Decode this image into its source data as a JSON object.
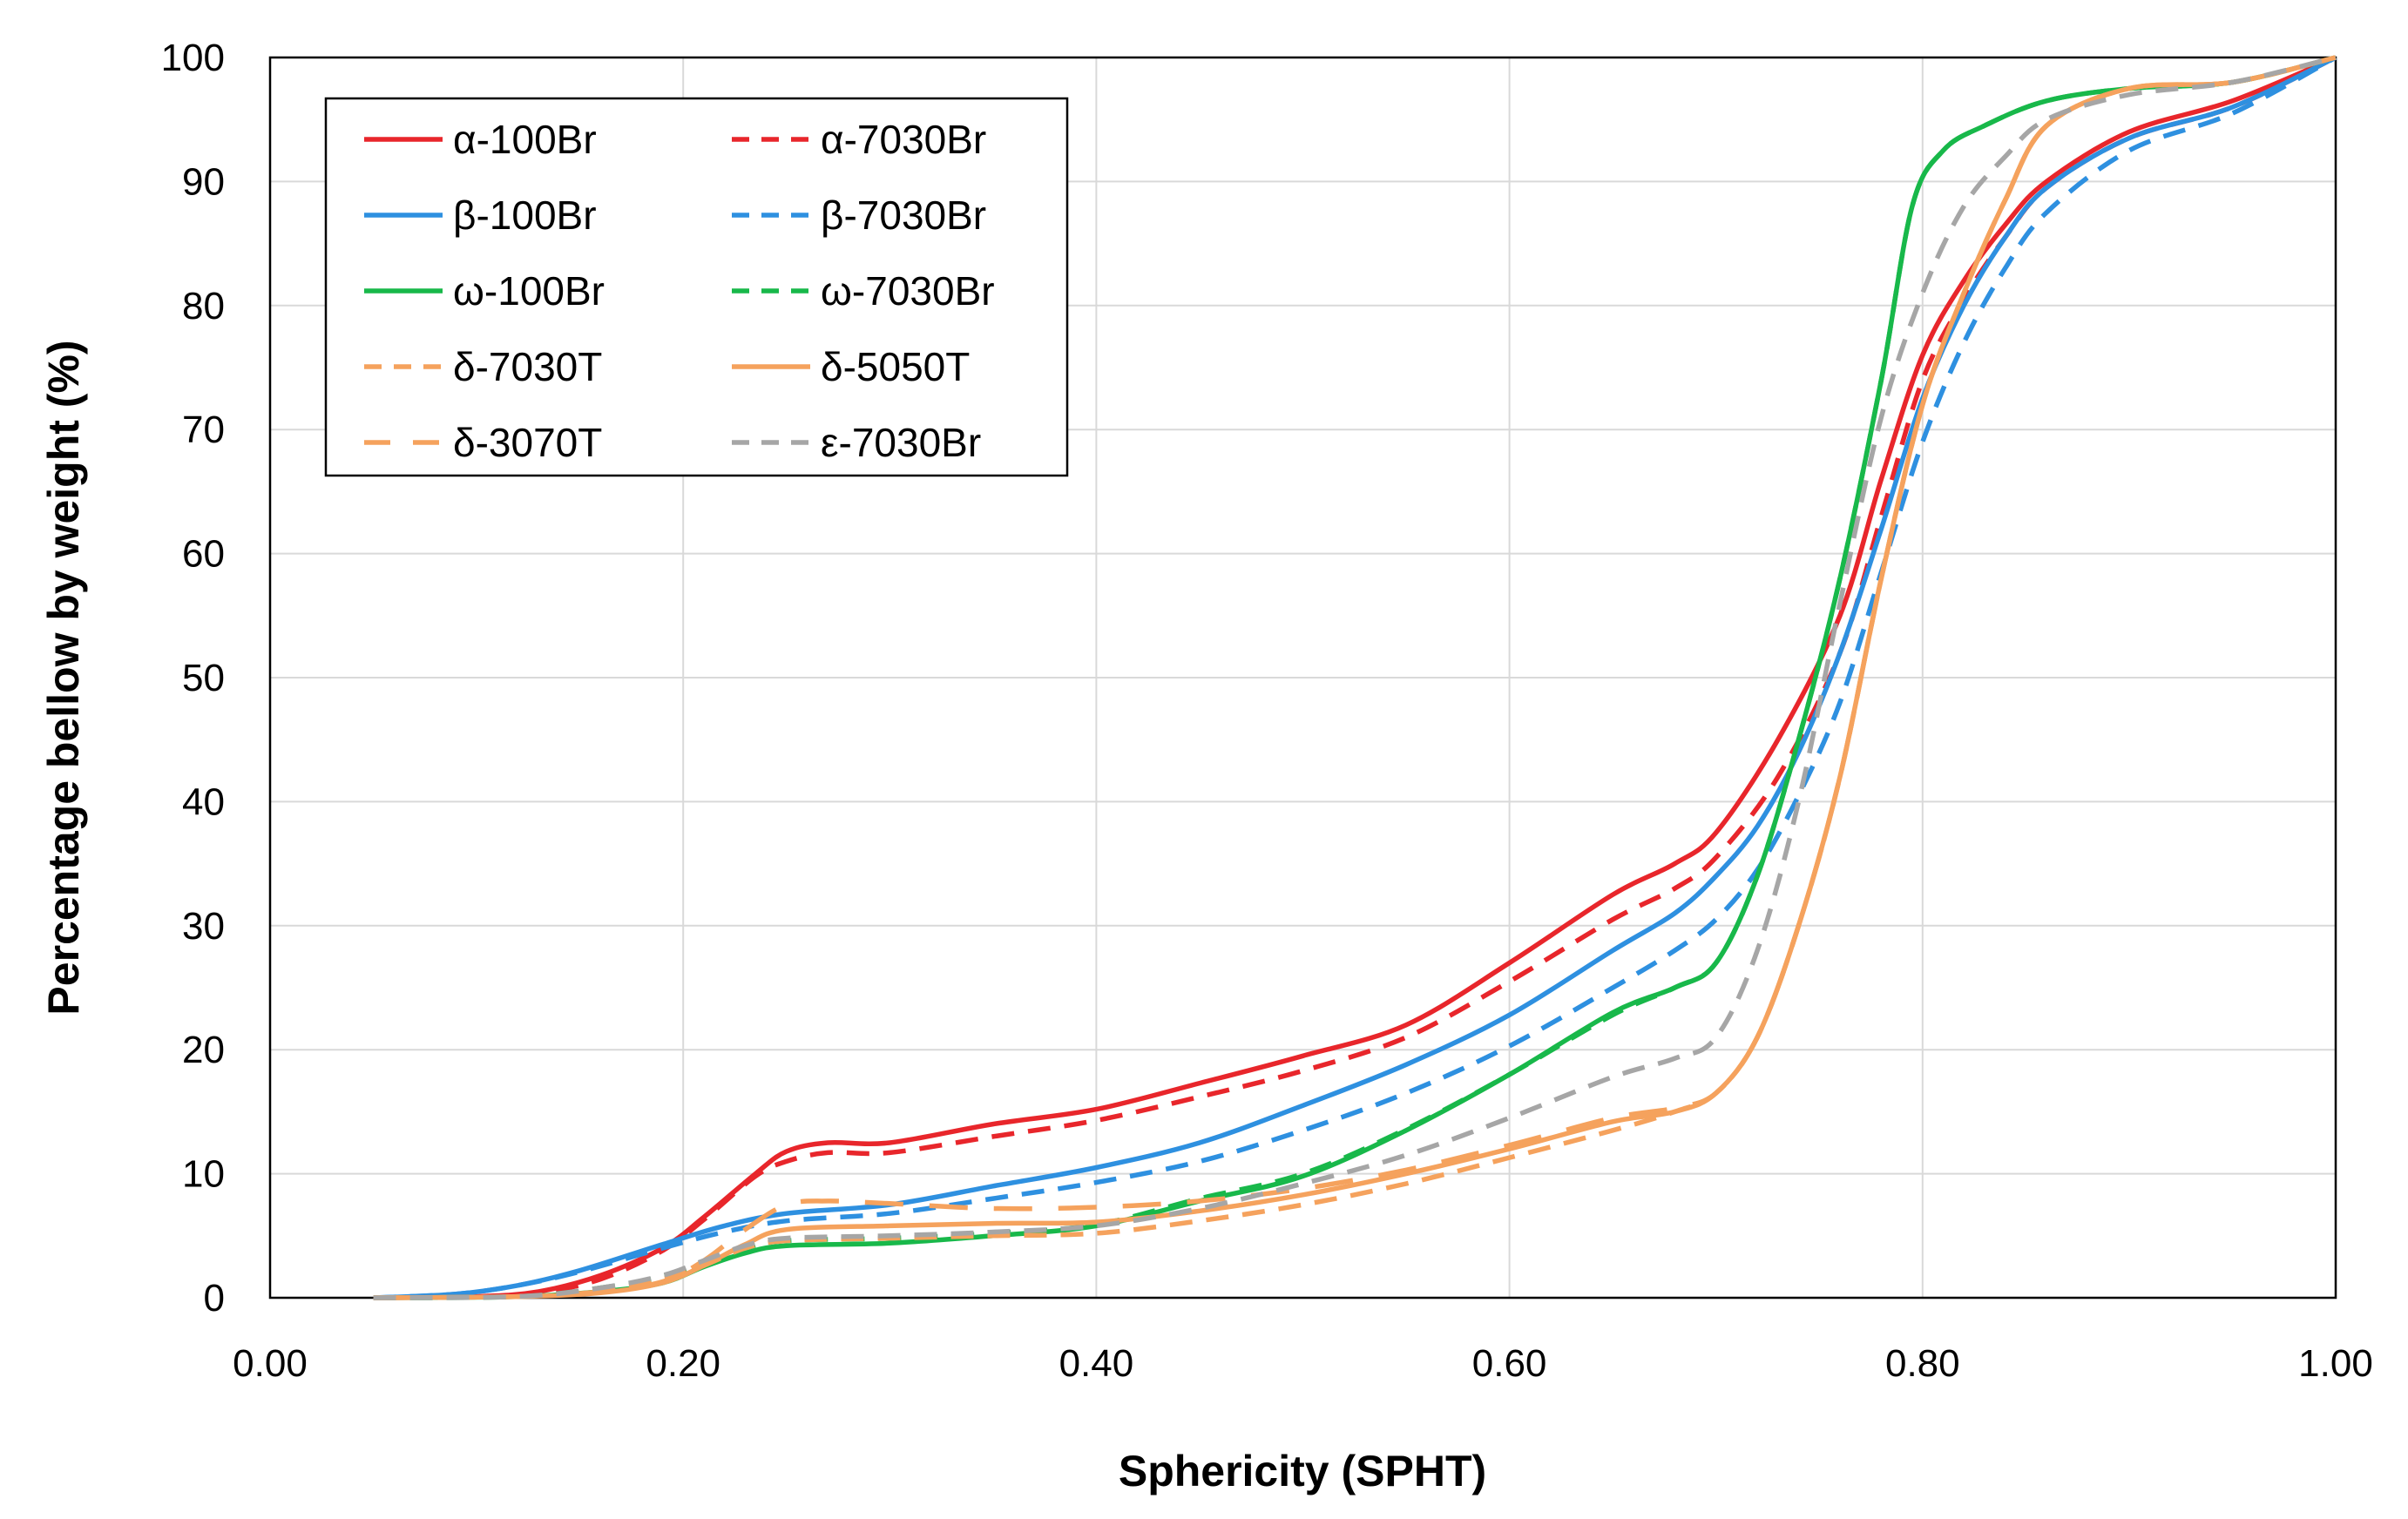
{
  "chart_data": {
    "type": "line",
    "title": "",
    "xlabel": "Sphericity (SPHT)",
    "ylabel": "Percentage bellow by weight (%)",
    "xlim": [
      0,
      1
    ],
    "ylim": [
      0,
      100
    ],
    "xticks": [
      0,
      0.2,
      0.4,
      0.6,
      0.8,
      1.0
    ],
    "xtick_labels": [
      "0.00",
      "0.20",
      "0.40",
      "0.60",
      "0.80",
      "1.00"
    ],
    "yticks": [
      0,
      10,
      20,
      30,
      40,
      50,
      60,
      70,
      80,
      90,
      100
    ],
    "ytick_labels": [
      "0",
      "10",
      "20",
      "30",
      "40",
      "50",
      "60",
      "70",
      "80",
      "90",
      "100"
    ],
    "grid": true,
    "legend_position": "top-left",
    "series": [
      {
        "name": "α-100Br",
        "color": "#e8262b",
        "dash": "solid",
        "points": [
          [
            0.05,
            0
          ],
          [
            0.1,
            0.1
          ],
          [
            0.13,
            0.5
          ],
          [
            0.16,
            1.8
          ],
          [
            0.19,
            4
          ],
          [
            0.21,
            6.5
          ],
          [
            0.235,
            10
          ],
          [
            0.25,
            11.8
          ],
          [
            0.27,
            12.5
          ],
          [
            0.3,
            12.5
          ],
          [
            0.35,
            14
          ],
          [
            0.4,
            15.2
          ],
          [
            0.45,
            17.3
          ],
          [
            0.5,
            19.5
          ],
          [
            0.55,
            22
          ],
          [
            0.6,
            27
          ],
          [
            0.65,
            32.5
          ],
          [
            0.68,
            35
          ],
          [
            0.7,
            37.5
          ],
          [
            0.73,
            45
          ],
          [
            0.76,
            55
          ],
          [
            0.78,
            66
          ],
          [
            0.8,
            76
          ],
          [
            0.82,
            82
          ],
          [
            0.84,
            86.5
          ],
          [
            0.86,
            90
          ],
          [
            0.9,
            94
          ],
          [
            0.95,
            96.5
          ],
          [
            1.0,
            100
          ]
        ]
      },
      {
        "name": "α-7030Br",
        "color": "#e8262b",
        "dash": "dashed",
        "points": [
          [
            0.05,
            0
          ],
          [
            0.1,
            0.1
          ],
          [
            0.13,
            0.4
          ],
          [
            0.16,
            1.5
          ],
          [
            0.19,
            3.8
          ],
          [
            0.21,
            6.3
          ],
          [
            0.235,
            9.8
          ],
          [
            0.25,
            11
          ],
          [
            0.27,
            11.7
          ],
          [
            0.3,
            11.7
          ],
          [
            0.35,
            13
          ],
          [
            0.4,
            14.3
          ],
          [
            0.45,
            16.2
          ],
          [
            0.5,
            18.3
          ],
          [
            0.55,
            21
          ],
          [
            0.6,
            25.5
          ],
          [
            0.65,
            30.5
          ],
          [
            0.68,
            33
          ],
          [
            0.7,
            35.5
          ],
          [
            0.73,
            42
          ],
          [
            0.76,
            52
          ],
          [
            0.78,
            63
          ],
          [
            0.8,
            74
          ],
          [
            0.82,
            80.5
          ],
          [
            0.84,
            85.5
          ],
          [
            0.86,
            89.5
          ],
          [
            0.9,
            93.5
          ],
          [
            0.95,
            96
          ],
          [
            1.0,
            100
          ]
        ]
      },
      {
        "name": "β-100Br",
        "color": "#2e90e0",
        "dash": "solid",
        "points": [
          [
            0.05,
            0
          ],
          [
            0.09,
            0.3
          ],
          [
            0.12,
            1
          ],
          [
            0.15,
            2.2
          ],
          [
            0.19,
            4.3
          ],
          [
            0.22,
            5.8
          ],
          [
            0.25,
            6.8
          ],
          [
            0.3,
            7.5
          ],
          [
            0.35,
            9
          ],
          [
            0.4,
            10.5
          ],
          [
            0.45,
            12.5
          ],
          [
            0.5,
            15.5
          ],
          [
            0.55,
            18.8
          ],
          [
            0.6,
            22.8
          ],
          [
            0.65,
            28
          ],
          [
            0.68,
            31
          ],
          [
            0.7,
            34
          ],
          [
            0.72,
            38
          ],
          [
            0.74,
            44
          ],
          [
            0.76,
            52
          ],
          [
            0.78,
            62
          ],
          [
            0.8,
            72.5
          ],
          [
            0.82,
            80
          ],
          [
            0.84,
            85.5
          ],
          [
            0.86,
            89.5
          ],
          [
            0.9,
            93.5
          ],
          [
            0.95,
            96
          ],
          [
            1.0,
            100
          ]
        ]
      },
      {
        "name": "β-7030Br",
        "color": "#2e90e0",
        "dash": "dashed",
        "points": [
          [
            0.05,
            0
          ],
          [
            0.09,
            0.3
          ],
          [
            0.12,
            1
          ],
          [
            0.15,
            2.1
          ],
          [
            0.19,
            4
          ],
          [
            0.22,
            5.3
          ],
          [
            0.25,
            6.2
          ],
          [
            0.3,
            6.8
          ],
          [
            0.35,
            8
          ],
          [
            0.4,
            9.3
          ],
          [
            0.45,
            11
          ],
          [
            0.5,
            13.5
          ],
          [
            0.55,
            16.5
          ],
          [
            0.6,
            20.3
          ],
          [
            0.65,
            25
          ],
          [
            0.68,
            28
          ],
          [
            0.7,
            30.5
          ],
          [
            0.72,
            34.5
          ],
          [
            0.74,
            40.5
          ],
          [
            0.76,
            48
          ],
          [
            0.78,
            58.5
          ],
          [
            0.8,
            69
          ],
          [
            0.82,
            77
          ],
          [
            0.84,
            83
          ],
          [
            0.86,
            87.5
          ],
          [
            0.9,
            92.5
          ],
          [
            0.95,
            95.5
          ],
          [
            1.0,
            100
          ]
        ]
      },
      {
        "name": "ω-100Br",
        "color": "#18b84a",
        "dash": "solid",
        "points": [
          [
            0.05,
            0
          ],
          [
            0.12,
            0.1
          ],
          [
            0.16,
            0.5
          ],
          [
            0.19,
            1.2
          ],
          [
            0.21,
            2.5
          ],
          [
            0.23,
            3.6
          ],
          [
            0.25,
            4.2
          ],
          [
            0.3,
            4.4
          ],
          [
            0.35,
            5
          ],
          [
            0.4,
            5.8
          ],
          [
            0.45,
            7.8
          ],
          [
            0.5,
            9.8
          ],
          [
            0.55,
            13.5
          ],
          [
            0.6,
            18
          ],
          [
            0.65,
            23
          ],
          [
            0.68,
            25
          ],
          [
            0.7,
            27
          ],
          [
            0.72,
            34
          ],
          [
            0.74,
            45
          ],
          [
            0.76,
            58
          ],
          [
            0.78,
            74
          ],
          [
            0.795,
            88
          ],
          [
            0.81,
            92.5
          ],
          [
            0.83,
            94.5
          ],
          [
            0.86,
            96.5
          ],
          [
            0.9,
            97.5
          ],
          [
            0.95,
            98
          ],
          [
            1.0,
            100
          ]
        ]
      },
      {
        "name": "ω-7030Br",
        "color": "#18b84a",
        "dash": "dashed",
        "points": [
          [
            0.05,
            0
          ],
          [
            0.12,
            0.1
          ],
          [
            0.16,
            0.8
          ],
          [
            0.19,
            1.7
          ],
          [
            0.21,
            2.8
          ],
          [
            0.23,
            4
          ],
          [
            0.25,
            4.6
          ],
          [
            0.3,
            4.8
          ],
          [
            0.35,
            5.2
          ],
          [
            0.4,
            5.9
          ],
          [
            0.45,
            8
          ],
          [
            0.5,
            10
          ],
          [
            0.55,
            13.6
          ],
          [
            0.6,
            18
          ],
          [
            0.65,
            22.8
          ],
          [
            0.68,
            25
          ],
          [
            0.7,
            27
          ],
          [
            0.72,
            34
          ],
          [
            0.74,
            45
          ],
          [
            0.76,
            58
          ],
          [
            0.78,
            74
          ],
          [
            0.795,
            88
          ],
          [
            0.81,
            92.5
          ],
          [
            0.83,
            94.5
          ],
          [
            0.86,
            96.5
          ],
          [
            0.9,
            97.5
          ],
          [
            0.95,
            98
          ],
          [
            1.0,
            100
          ]
        ]
      },
      {
        "name": "δ-7030T",
        "color": "#f5a25d",
        "dash": "dashed",
        "points": [
          [
            0.05,
            0
          ],
          [
            0.12,
            0.1
          ],
          [
            0.16,
            0.6
          ],
          [
            0.19,
            1.5
          ],
          [
            0.21,
            2.6
          ],
          [
            0.23,
            4
          ],
          [
            0.25,
            4.6
          ],
          [
            0.3,
            4.8
          ],
          [
            0.35,
            5
          ],
          [
            0.4,
            5.2
          ],
          [
            0.45,
            6.2
          ],
          [
            0.5,
            7.5
          ],
          [
            0.55,
            9.2
          ],
          [
            0.6,
            11.3
          ],
          [
            0.65,
            13.5
          ],
          [
            0.68,
            15
          ],
          [
            0.7,
            16.5
          ],
          [
            0.72,
            21
          ],
          [
            0.74,
            30
          ],
          [
            0.76,
            42
          ],
          [
            0.78,
            58
          ],
          [
            0.8,
            72
          ],
          [
            0.82,
            81
          ],
          [
            0.84,
            88.5
          ],
          [
            0.86,
            94.5
          ],
          [
            0.9,
            97.5
          ],
          [
            0.95,
            98
          ],
          [
            1.0,
            100
          ]
        ]
      },
      {
        "name": "δ-5050T",
        "color": "#f5a25d",
        "dash": "solid",
        "points": [
          [
            0.05,
            0
          ],
          [
            0.12,
            0.1
          ],
          [
            0.16,
            0.4
          ],
          [
            0.19,
            1.2
          ],
          [
            0.21,
            2.6
          ],
          [
            0.23,
            4.3
          ],
          [
            0.25,
            5.5
          ],
          [
            0.3,
            5.8
          ],
          [
            0.35,
            6
          ],
          [
            0.4,
            6.1
          ],
          [
            0.45,
            7
          ],
          [
            0.5,
            8.3
          ],
          [
            0.55,
            10
          ],
          [
            0.6,
            12
          ],
          [
            0.65,
            14.2
          ],
          [
            0.68,
            15
          ],
          [
            0.7,
            16.5
          ],
          [
            0.72,
            21
          ],
          [
            0.74,
            30
          ],
          [
            0.76,
            42
          ],
          [
            0.78,
            58
          ],
          [
            0.8,
            72
          ],
          [
            0.82,
            81
          ],
          [
            0.84,
            88.5
          ],
          [
            0.86,
            94.5
          ],
          [
            0.9,
            97.5
          ],
          [
            0.95,
            98
          ],
          [
            1.0,
            100
          ]
        ]
      },
      {
        "name": "δ-3070T",
        "color": "#f5a25d",
        "dash": "longdash",
        "points": [
          [
            0.05,
            0
          ],
          [
            0.12,
            0.1
          ],
          [
            0.16,
            0.5
          ],
          [
            0.19,
            1.3
          ],
          [
            0.21,
            3
          ],
          [
            0.23,
            5.5
          ],
          [
            0.25,
            7.5
          ],
          [
            0.27,
            7.8
          ],
          [
            0.3,
            7.6
          ],
          [
            0.35,
            7.2
          ],
          [
            0.4,
            7.3
          ],
          [
            0.45,
            7.8
          ],
          [
            0.5,
            8.8
          ],
          [
            0.55,
            10.3
          ],
          [
            0.6,
            12.3
          ],
          [
            0.65,
            14.5
          ],
          [
            0.68,
            15.3
          ],
          [
            0.7,
            16.5
          ],
          [
            0.72,
            21
          ],
          [
            0.74,
            30
          ],
          [
            0.76,
            42
          ],
          [
            0.78,
            58
          ],
          [
            0.8,
            72
          ],
          [
            0.82,
            81
          ],
          [
            0.84,
            88.5
          ],
          [
            0.86,
            94.5
          ],
          [
            0.9,
            97.5
          ],
          [
            0.95,
            98
          ],
          [
            1.0,
            100
          ]
        ]
      },
      {
        "name": "ε-7030Br",
        "color": "#a6a6a6",
        "dash": "dashed",
        "points": [
          [
            0.05,
            0
          ],
          [
            0.12,
            0.1
          ],
          [
            0.16,
            0.8
          ],
          [
            0.19,
            1.8
          ],
          [
            0.21,
            3
          ],
          [
            0.23,
            4.2
          ],
          [
            0.25,
            4.8
          ],
          [
            0.3,
            5
          ],
          [
            0.35,
            5.3
          ],
          [
            0.4,
            5.8
          ],
          [
            0.45,
            7.2
          ],
          [
            0.5,
            9.2
          ],
          [
            0.55,
            11.5
          ],
          [
            0.6,
            14.5
          ],
          [
            0.65,
            17.8
          ],
          [
            0.68,
            19.3
          ],
          [
            0.7,
            21
          ],
          [
            0.72,
            28
          ],
          [
            0.74,
            40
          ],
          [
            0.76,
            56
          ],
          [
            0.78,
            71
          ],
          [
            0.8,
            81
          ],
          [
            0.82,
            88
          ],
          [
            0.84,
            92
          ],
          [
            0.86,
            95
          ],
          [
            0.9,
            97
          ],
          [
            0.95,
            98
          ],
          [
            1.0,
            100
          ]
        ]
      }
    ]
  }
}
